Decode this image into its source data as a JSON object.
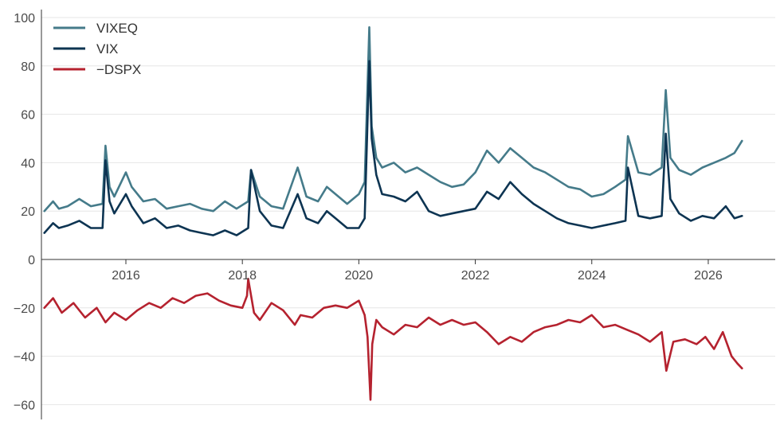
{
  "chart_data": {
    "type": "line",
    "title": "",
    "xlabel": "",
    "ylabel": "",
    "xlim": [
      2014.55,
      2027.15
    ],
    "ylim": [
      -65,
      101
    ],
    "x_ticks": [
      2016,
      2018,
      2020,
      2022,
      2024,
      2026
    ],
    "x_tick_labels": [
      "2016",
      "2018",
      "2020",
      "2022",
      "2024",
      "2026"
    ],
    "y_ticks": [
      100,
      80,
      60,
      40,
      20,
      0,
      -20,
      -40,
      -60
    ],
    "y_tick_labels": [
      "100",
      "80",
      "60",
      "40",
      "20",
      "0",
      "−20",
      "−40",
      "−60"
    ],
    "grid": "horizontal",
    "legend_position": "top-left",
    "series": [
      {
        "name": "VIXEQ",
        "color": "#457b8a",
        "x": [
          2014.6,
          2014.75,
          2014.85,
          2015.0,
          2015.2,
          2015.4,
          2015.6,
          2015.65,
          2015.72,
          2015.8,
          2016.0,
          2016.1,
          2016.3,
          2016.5,
          2016.7,
          2016.9,
          2017.1,
          2017.3,
          2017.5,
          2017.7,
          2017.9,
          2018.1,
          2018.15,
          2018.3,
          2018.5,
          2018.7,
          2018.95,
          2019.1,
          2019.3,
          2019.45,
          2019.6,
          2019.8,
          2020.0,
          2020.1,
          2020.18,
          2020.22,
          2020.3,
          2020.4,
          2020.6,
          2020.8,
          2021.0,
          2021.2,
          2021.4,
          2021.6,
          2021.8,
          2022.0,
          2022.2,
          2022.4,
          2022.6,
          2022.8,
          2023.0,
          2023.2,
          2023.4,
          2023.6,
          2023.8,
          2024.0,
          2024.2,
          2024.4,
          2024.58,
          2024.62,
          2024.8,
          2025.0,
          2025.2,
          2025.27,
          2025.35,
          2025.5,
          2025.7,
          2025.9,
          2026.1,
          2026.3,
          2026.45,
          2026.58
        ],
        "y": [
          20,
          24,
          21,
          22,
          25,
          22,
          23,
          47,
          30,
          26,
          36,
          30,
          24,
          25,
          21,
          22,
          23,
          21,
          20,
          24,
          21,
          24,
          37,
          26,
          22,
          21,
          38,
          26,
          24,
          30,
          27,
          23,
          27,
          32,
          96,
          55,
          42,
          38,
          40,
          36,
          38,
          35,
          32,
          30,
          31,
          36,
          45,
          40,
          46,
          42,
          38,
          36,
          33,
          30,
          29,
          26,
          27,
          30,
          33,
          51,
          36,
          35,
          38,
          70,
          42,
          37,
          35,
          38,
          40,
          42,
          44,
          49
        ]
      },
      {
        "name": "VIX",
        "color": "#0d3452",
        "x": [
          2014.6,
          2014.75,
          2014.85,
          2015.0,
          2015.2,
          2015.4,
          2015.6,
          2015.65,
          2015.72,
          2015.8,
          2016.0,
          2016.1,
          2016.3,
          2016.5,
          2016.7,
          2016.9,
          2017.1,
          2017.3,
          2017.5,
          2017.7,
          2017.9,
          2018.1,
          2018.15,
          2018.3,
          2018.5,
          2018.7,
          2018.95,
          2019.1,
          2019.3,
          2019.45,
          2019.6,
          2019.8,
          2020.0,
          2020.1,
          2020.18,
          2020.22,
          2020.3,
          2020.4,
          2020.6,
          2020.8,
          2021.0,
          2021.2,
          2021.4,
          2021.6,
          2021.8,
          2022.0,
          2022.2,
          2022.4,
          2022.6,
          2022.8,
          2023.0,
          2023.2,
          2023.4,
          2023.6,
          2023.8,
          2024.0,
          2024.2,
          2024.4,
          2024.58,
          2024.62,
          2024.8,
          2025.0,
          2025.2,
          2025.27,
          2025.35,
          2025.5,
          2025.7,
          2025.9,
          2026.1,
          2026.3,
          2026.45,
          2026.58
        ],
        "y": [
          11,
          15,
          13,
          14,
          16,
          13,
          13,
          41,
          24,
          19,
          27,
          22,
          15,
          17,
          13,
          14,
          12,
          11,
          10,
          12,
          10,
          13,
          37,
          20,
          14,
          13,
          27,
          17,
          15,
          20,
          17,
          13,
          13,
          17,
          82,
          50,
          35,
          27,
          26,
          24,
          28,
          20,
          18,
          19,
          20,
          21,
          28,
          25,
          32,
          27,
          23,
          20,
          17,
          15,
          14,
          13,
          14,
          15,
          16,
          38,
          18,
          17,
          18,
          52,
          25,
          19,
          16,
          18,
          17,
          22,
          17,
          18
        ]
      },
      {
        "name": "−DSPX",
        "color": "#b5222f",
        "x": [
          2014.6,
          2014.75,
          2014.9,
          2015.1,
          2015.3,
          2015.5,
          2015.65,
          2015.8,
          2016.0,
          2016.2,
          2016.4,
          2016.6,
          2016.8,
          2017.0,
          2017.2,
          2017.4,
          2017.6,
          2017.8,
          2018.0,
          2018.08,
          2018.1,
          2018.2,
          2018.3,
          2018.5,
          2018.7,
          2018.9,
          2019.0,
          2019.2,
          2019.4,
          2019.6,
          2019.8,
          2020.0,
          2020.1,
          2020.15,
          2020.2,
          2020.23,
          2020.3,
          2020.4,
          2020.6,
          2020.8,
          2021.0,
          2021.2,
          2021.4,
          2021.6,
          2021.8,
          2022.0,
          2022.2,
          2022.4,
          2022.6,
          2022.8,
          2023.0,
          2023.2,
          2023.4,
          2023.6,
          2023.8,
          2024.0,
          2024.2,
          2024.4,
          2024.6,
          2024.8,
          2025.0,
          2025.2,
          2025.28,
          2025.4,
          2025.6,
          2025.8,
          2025.95,
          2026.1,
          2026.25,
          2026.4,
          2026.5,
          2026.58
        ],
        "y": [
          -20,
          -16,
          -22,
          -18,
          -24,
          -20,
          -26,
          -22,
          -25,
          -21,
          -18,
          -20,
          -16,
          -18,
          -15,
          -14,
          -17,
          -19,
          -20,
          -15,
          -8,
          -22,
          -25,
          -18,
          -21,
          -27,
          -23,
          -24,
          -20,
          -19,
          -20,
          -17,
          -23,
          -32,
          -58,
          -35,
          -25,
          -28,
          -31,
          -27,
          -28,
          -24,
          -27,
          -25,
          -27,
          -26,
          -30,
          -35,
          -32,
          -34,
          -30,
          -28,
          -27,
          -25,
          -26,
          -23,
          -28,
          -27,
          -29,
          -31,
          -34,
          -30,
          -46,
          -34,
          -33,
          -35,
          -32,
          -37,
          -30,
          -40,
          -43,
          -45
        ]
      }
    ]
  }
}
